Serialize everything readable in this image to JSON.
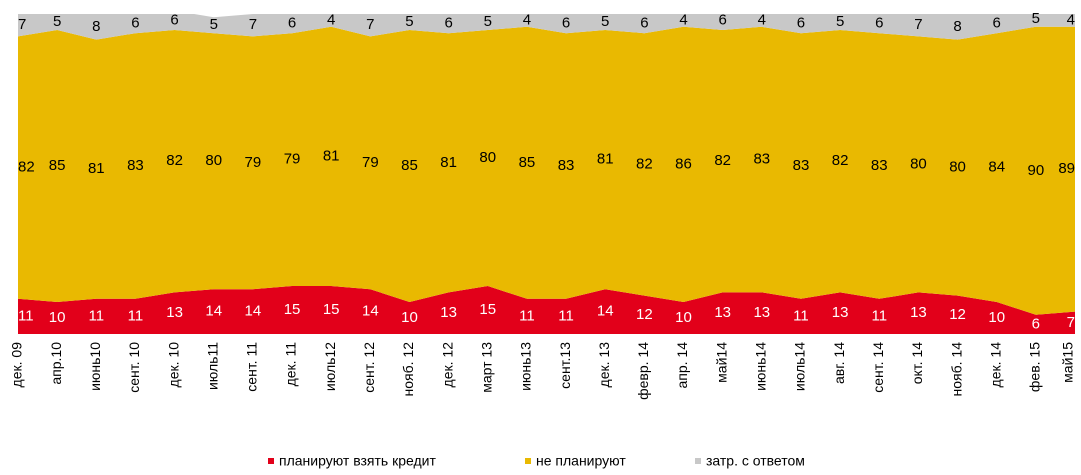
{
  "chart_data": {
    "type": "stacked_area",
    "categories": [
      "дек. 09",
      "апр.10",
      "июнь10",
      "сент. 10",
      "дек. 10",
      "июль11",
      "сент. 11",
      "дек. 11",
      "июль12",
      "сент. 12",
      "нояб. 12",
      "дек. 12",
      "март 13",
      "июнь13",
      "сент.13",
      "дек. 13",
      "февр. 14",
      "апр. 14",
      "май14",
      "июнь14",
      "июль14",
      "авг. 14",
      "сент. 14",
      "окт. 14",
      "нояб. 14",
      "дек. 14",
      "фев. 15",
      "май15"
    ],
    "series": [
      {
        "name": "планируют взять кредит",
        "color": "#e2001a",
        "label_color": "#ffffff",
        "values": [
          11,
          10,
          11,
          11,
          13,
          14,
          14,
          15,
          15,
          14,
          10,
          13,
          15,
          11,
          11,
          14,
          12,
          10,
          13,
          13,
          11,
          13,
          11,
          13,
          12,
          10,
          6,
          7
        ]
      },
      {
        "name": "не планируют",
        "color": "#e9b901",
        "label_color": "#000000",
        "values": [
          82,
          85,
          81,
          83,
          82,
          80,
          79,
          79,
          81,
          79,
          85,
          81,
          80,
          85,
          83,
          81,
          82,
          86,
          82,
          83,
          83,
          82,
          83,
          80,
          80,
          84,
          90,
          89
        ]
      },
      {
        "name": "затр. с ответом",
        "color": "#c8c8c8",
        "label_color": "#000000",
        "values": [
          7,
          5,
          8,
          6,
          6,
          5,
          7,
          6,
          4,
          7,
          5,
          6,
          5,
          4,
          6,
          5,
          6,
          4,
          6,
          4,
          6,
          5,
          6,
          7,
          8,
          6,
          5,
          4
        ]
      }
    ],
    "ylim": [
      0,
      100
    ]
  }
}
